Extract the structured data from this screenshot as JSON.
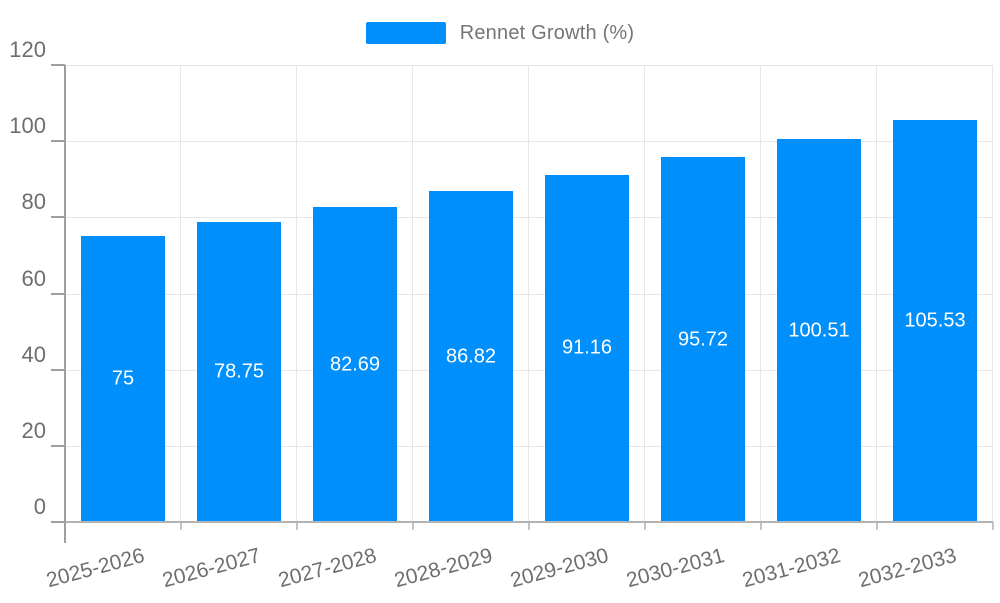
{
  "legend": {
    "label": "Rennet Growth (%)",
    "swatch_color": "#008FFB"
  },
  "chart_data": {
    "type": "bar",
    "title": "Rennet Growth (%)",
    "categories": [
      "2025-2026",
      "2026-2027",
      "2027-2028",
      "2028-2029",
      "2029-2030",
      "2030-2031",
      "2031-2032",
      "2032-2033"
    ],
    "values": [
      75,
      78.75,
      82.69,
      86.82,
      91.16,
      95.72,
      100.51,
      105.53
    ],
    "value_labels": [
      "75",
      "78.75",
      "82.69",
      "86.82",
      "91.16",
      "95.72",
      "100.51",
      "105.53"
    ],
    "ytick_labels": [
      "0",
      "20",
      "40",
      "60",
      "80",
      "100",
      "120"
    ],
    "yticks": [
      0,
      20,
      40,
      60,
      80,
      100,
      120
    ],
    "ylim": [
      0,
      120
    ],
    "xlabel": "",
    "ylabel": "",
    "grid": true,
    "legend_position": "top",
    "bar_color": "#008FFB",
    "value_label_color": "#ffffff",
    "grid_color": "#e7e7e7",
    "axis_line_color": "#b3b3b3",
    "tick_label_color": "#6e6e6e",
    "legend_text_color": "#757575"
  }
}
